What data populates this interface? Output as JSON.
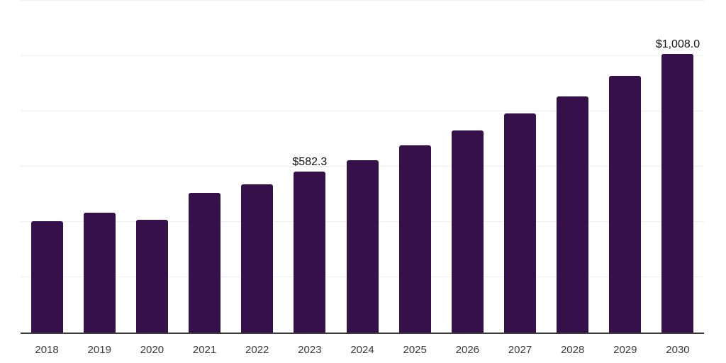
{
  "colors": {
    "bar": "#35104B",
    "gridline": "#EFEFEF",
    "axis_line": "#3D3D3D",
    "tick_label": "#3A3A3A",
    "data_label": "#111111",
    "background": "#FFFFFF"
  },
  "chart_data": {
    "type": "bar",
    "title": "",
    "xlabel": "",
    "ylabel": "",
    "categories": [
      "2018",
      "2019",
      "2020",
      "2021",
      "2022",
      "2023",
      "2024",
      "2025",
      "2026",
      "2027",
      "2028",
      "2029",
      "2030"
    ],
    "values": [
      402,
      433,
      409,
      505,
      535,
      582.3,
      623,
      676,
      732,
      792,
      853,
      927,
      1008
    ],
    "data_labels": [
      "",
      "",
      "",
      "",
      "",
      "$582.3",
      "",
      "",
      "",
      "",
      "",
      "",
      "$1,008.0"
    ],
    "ylim": [
      0,
      1200
    ],
    "gridline_interval": 200,
    "grid": true,
    "legend": false,
    "y_axis_labels_visible": false
  }
}
